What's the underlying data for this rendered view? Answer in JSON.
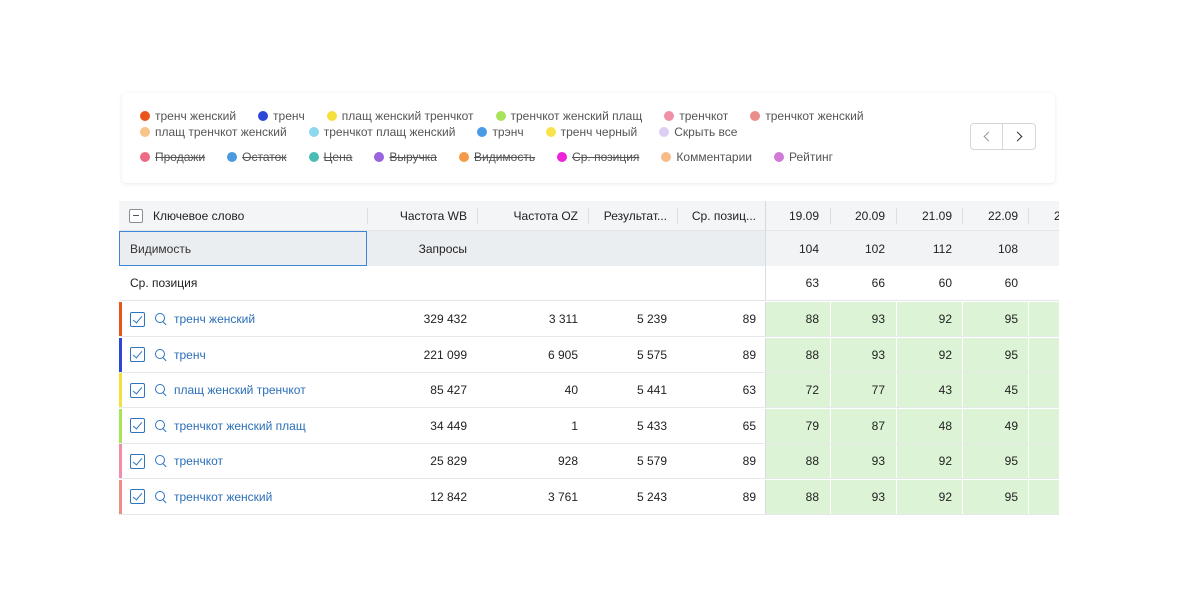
{
  "legend": {
    "row1": [
      {
        "label": "тренч женский",
        "color": "#e8541c"
      },
      {
        "label": "тренч",
        "color": "#2b47d6"
      },
      {
        "label": "плащ женский тренчкот",
        "color": "#f5df3a"
      },
      {
        "label": "тренчкот женский плащ",
        "color": "#a8e45a"
      },
      {
        "label": "тренчкот",
        "color": "#ef8fa8"
      },
      {
        "label": "тренчкот женский",
        "color": "#eb8d8a"
      }
    ],
    "row2": [
      {
        "label": "плащ тренчкот женский",
        "color": "#f7c48a"
      },
      {
        "label": "тренчкот плащ женский",
        "color": "#8ed8ef"
      },
      {
        "label": "трэнч",
        "color": "#4a9be6"
      },
      {
        "label": "тренч черный",
        "color": "#f7e44a"
      },
      {
        "label": "Скрыть все",
        "color": "#dccff3"
      }
    ],
    "row3": [
      {
        "label": "Продажи",
        "color": "#ef6a85",
        "off": true
      },
      {
        "label": "Остаток",
        "color": "#4a9ae0",
        "off": true
      },
      {
        "label": "Цена",
        "color": "#4bbcb4",
        "off": true
      },
      {
        "label": "Выручка",
        "color": "#9a63e0",
        "off": true
      },
      {
        "label": "Видимость",
        "color": "#f59a4a",
        "off": true
      },
      {
        "label": "Ср. позиция",
        "color": "#ee22d8",
        "off": true
      },
      {
        "label": "Комментарии",
        "color": "#f7bb8a",
        "off": false
      },
      {
        "label": "Рейтинг",
        "color": "#d07ad8",
        "off": false
      }
    ]
  },
  "table": {
    "headers": {
      "keyword": "Ключевое слово",
      "freq_wb": "Частота WB",
      "freq_oz": "Частота OZ",
      "results": "Результат...",
      "avg_pos": "Ср. позиц...",
      "dates": [
        "19.09",
        "20.09",
        "21.09",
        "22.09",
        "2"
      ]
    },
    "visibility": {
      "label": "Видимость",
      "requests": "Запросы",
      "values": [
        "104",
        "102",
        "112",
        "108"
      ]
    },
    "avg_position": {
      "label": "Ср. позиция",
      "values": [
        "63",
        "66",
        "60",
        "60"
      ]
    },
    "rows": [
      {
        "keyword": "тренч женский",
        "color": "#e8541c",
        "freq_wb": "329 432",
        "freq_oz": "3 311",
        "results": "5 239",
        "avg_pos": "89",
        "days": [
          "88",
          "93",
          "92",
          "95"
        ]
      },
      {
        "keyword": "тренч",
        "color": "#2b47d6",
        "freq_wb": "221 099",
        "freq_oz": "6 905",
        "results": "5 575",
        "avg_pos": "89",
        "days": [
          "88",
          "93",
          "92",
          "95"
        ]
      },
      {
        "keyword": "плащ женский тренчкот",
        "color": "#f5df3a",
        "freq_wb": "85 427",
        "freq_oz": "40",
        "results": "5 441",
        "avg_pos": "63",
        "days": [
          "72",
          "77",
          "43",
          "45"
        ]
      },
      {
        "keyword": "тренчкот женский плащ",
        "color": "#a8e45a",
        "freq_wb": "34 449",
        "freq_oz": "1",
        "results": "5 433",
        "avg_pos": "65",
        "days": [
          "79",
          "87",
          "48",
          "49"
        ]
      },
      {
        "keyword": "тренчкот",
        "color": "#ef8fa8",
        "freq_wb": "25 829",
        "freq_oz": "928",
        "results": "5 579",
        "avg_pos": "89",
        "days": [
          "88",
          "93",
          "92",
          "95"
        ]
      },
      {
        "keyword": "тренчкот женский",
        "color": "#eb8d8a",
        "freq_wb": "12 842",
        "freq_oz": "3 761",
        "results": "5 243",
        "avg_pos": "89",
        "days": [
          "88",
          "93",
          "92",
          "95"
        ]
      }
    ]
  }
}
